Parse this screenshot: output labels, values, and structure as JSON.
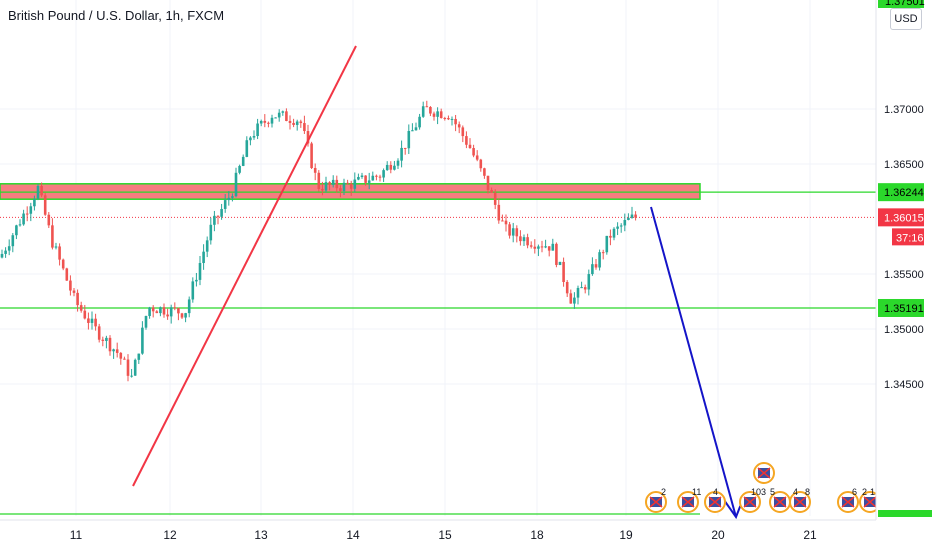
{
  "chart_data": {
    "type": "candlestick",
    "title": "British Pound / U.S. Dollar, 1h, FXCM",
    "currency": "USD",
    "x_ticks": [
      "11",
      "12",
      "13",
      "14",
      "15",
      "18",
      "19",
      "20",
      "21"
    ],
    "y_ticks": [
      "1.37000",
      "1.36500",
      "1.35500",
      "1.35000",
      "1.34500"
    ],
    "ylim": [
      1.3435,
      1.3755
    ],
    "grid": true,
    "top_label": "1.37501",
    "levels": [
      {
        "value": 1.36244,
        "label": "1.36244",
        "color": "#2bd82b"
      },
      {
        "value": 1.35191,
        "label": "1.35191",
        "color": "#2bd82b"
      }
    ],
    "last_price": {
      "value": 1.36015,
      "label": "1.36015",
      "countdown": "37:16",
      "color": "#f23645"
    },
    "resistance_zone": {
      "low": 1.3618,
      "high": 1.3632,
      "color": "#f77c80"
    },
    "colors": {
      "up": "#26a69a",
      "down": "#ef5350",
      "trendline": "#f23645",
      "arrow": "#1414c8"
    },
    "event_counts": [
      "2",
      "11",
      "4",
      "103",
      "5",
      "4",
      "8",
      "6",
      "2",
      "1"
    ]
  }
}
